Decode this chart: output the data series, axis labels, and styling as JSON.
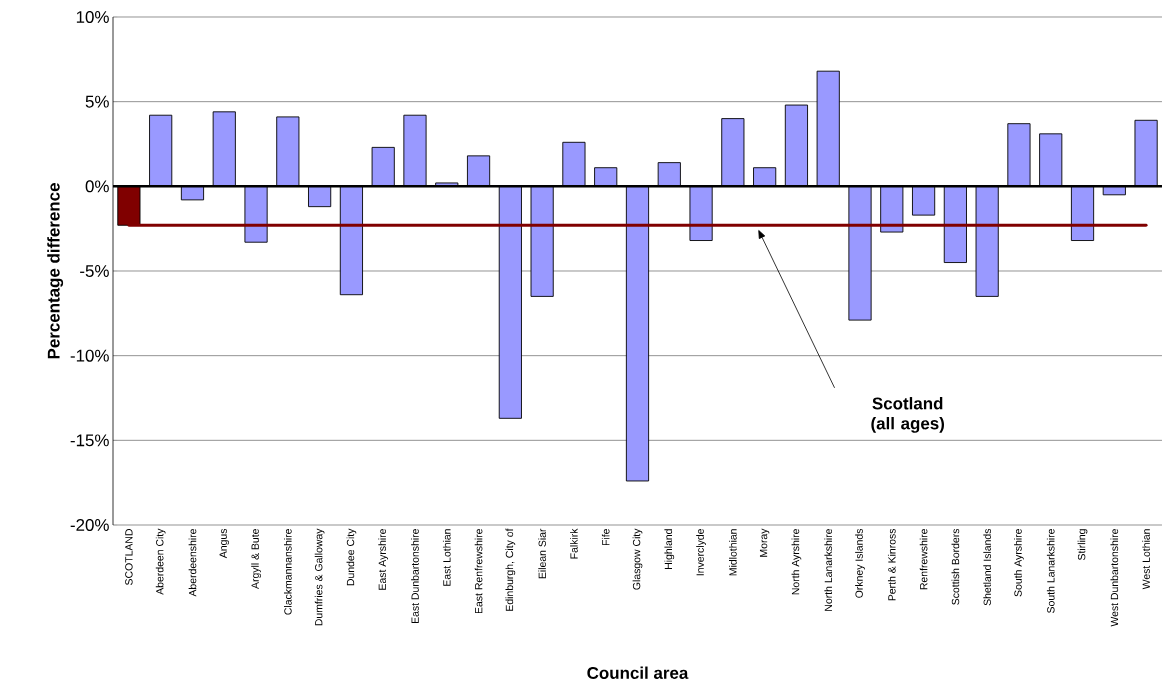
{
  "chart_data": {
    "type": "bar",
    "xlabel": "Council area",
    "ylabel": "Percentage difference",
    "categories": [
      "SCOTLAND",
      "Aberdeen City",
      "Aberdeenshire",
      "Angus",
      "Argyll & Bute",
      "Clackmannanshire",
      "Dumfries & Galloway",
      "Dundee City",
      "East Ayrshire",
      "East Dunbartonshire",
      "East Lothian",
      "East Renfrewshire",
      "Edinburgh, City of",
      "Eilean Siar",
      "Falkirk",
      "Fife",
      "Glasgow City",
      "Highland",
      "Inverclyde",
      "Midlothian",
      "Moray",
      "North Ayrshire",
      "North Lanarkshire",
      "Orkney Islands",
      "Perth & Kinross",
      "Renfrewshire",
      "Scottish Borders",
      "Shetland Islands",
      "South Ayrshire",
      "South Lanarkshire",
      "Stirling",
      "West Dunbartonshire",
      "West Lothian"
    ],
    "values": [
      -2.3,
      4.2,
      -0.8,
      4.4,
      -3.3,
      4.1,
      -1.2,
      -6.4,
      2.3,
      4.2,
      0.2,
      1.8,
      -13.7,
      -6.5,
      2.6,
      1.1,
      -17.4,
      1.4,
      -3.2,
      4.0,
      1.1,
      4.8,
      6.8,
      -7.9,
      -2.7,
      -1.7,
      -4.5,
      -6.5,
      3.7,
      3.1,
      -3.2,
      -0.5,
      3.9
    ],
    "colors": [
      "#800000",
      "#9999ff",
      "#9999ff",
      "#9999ff",
      "#9999ff",
      "#9999ff",
      "#9999ff",
      "#9999ff",
      "#9999ff",
      "#9999ff",
      "#9999ff",
      "#9999ff",
      "#9999ff",
      "#9999ff",
      "#9999ff",
      "#9999ff",
      "#9999ff",
      "#9999ff",
      "#9999ff",
      "#9999ff",
      "#9999ff",
      "#9999ff",
      "#9999ff",
      "#9999ff",
      "#9999ff",
      "#9999ff",
      "#9999ff",
      "#9999ff",
      "#9999ff",
      "#9999ff",
      "#9999ff",
      "#9999ff",
      "#9999ff"
    ],
    "ylim": [
      -20,
      10
    ],
    "yticks": [
      {
        "value": -20,
        "label": "-20%"
      },
      {
        "value": -15,
        "label": "-15%"
      },
      {
        "value": -10,
        "label": "-10%"
      },
      {
        "value": -5,
        "label": "-5%"
      },
      {
        "value": 0,
        "label": "0%"
      },
      {
        "value": 5,
        "label": "5%"
      },
      {
        "value": 10,
        "label": "10%"
      }
    ],
    "grid": "y",
    "annotations": [
      "Scotland (all ages)"
    ],
    "ref_lines": [
      {
        "axis": "y",
        "value": -2.3,
        "color": "#800000"
      }
    ]
  }
}
